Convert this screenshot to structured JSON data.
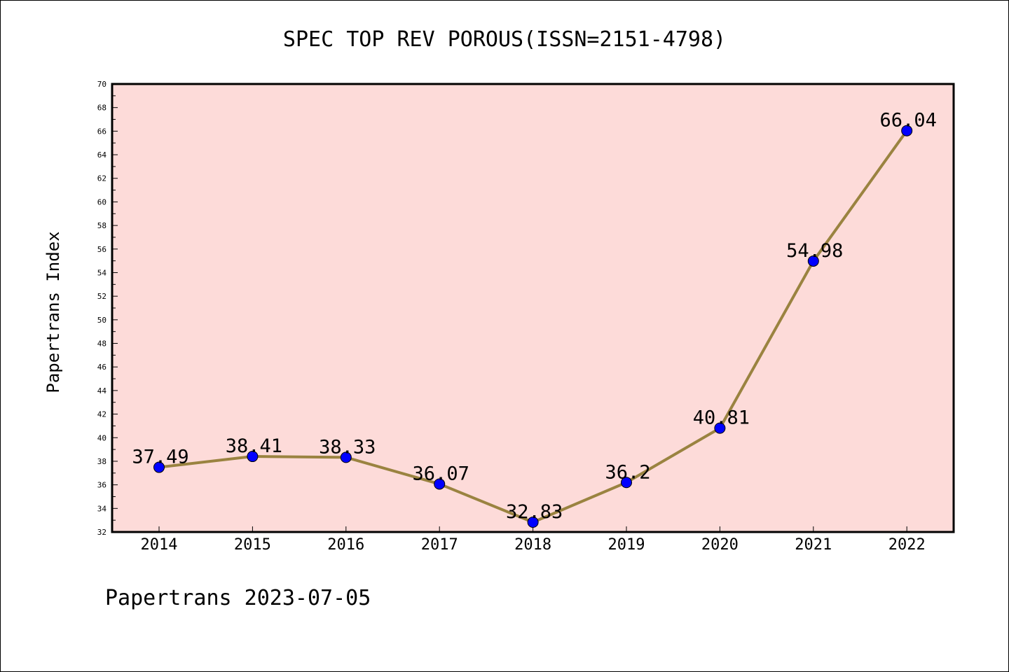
{
  "chart_data": {
    "type": "line",
    "title": "SPEC TOP REV POROUS(ISSN=2151-4798)",
    "xlabel": "",
    "ylabel": "Papertrans Index",
    "categories": [
      "2014",
      "2015",
      "2016",
      "2017",
      "2018",
      "2019",
      "2020",
      "2021",
      "2022"
    ],
    "values": [
      37.49,
      38.41,
      38.33,
      36.07,
      32.83,
      36.2,
      40.81,
      54.98,
      66.04
    ],
    "data_labels": [
      "37.49",
      "38.41",
      "38.33",
      "36.07",
      "32.83",
      "36.2",
      "40.81",
      "54.98",
      "66.04"
    ],
    "ylim": [
      32,
      70
    ],
    "yticks": [
      "32",
      "34",
      "36",
      "38",
      "40",
      "42",
      "44",
      "46",
      "48",
      "50",
      "52",
      "54",
      "56",
      "58",
      "60",
      "62",
      "64",
      "66",
      "68",
      "70"
    ],
    "grid": false,
    "legend": "none",
    "colors": {
      "plot_background": "#fddbd9",
      "line": "#9a8340",
      "marker": "#0000ff"
    }
  },
  "footer": {
    "text": "Papertrans 2023-07-05"
  }
}
